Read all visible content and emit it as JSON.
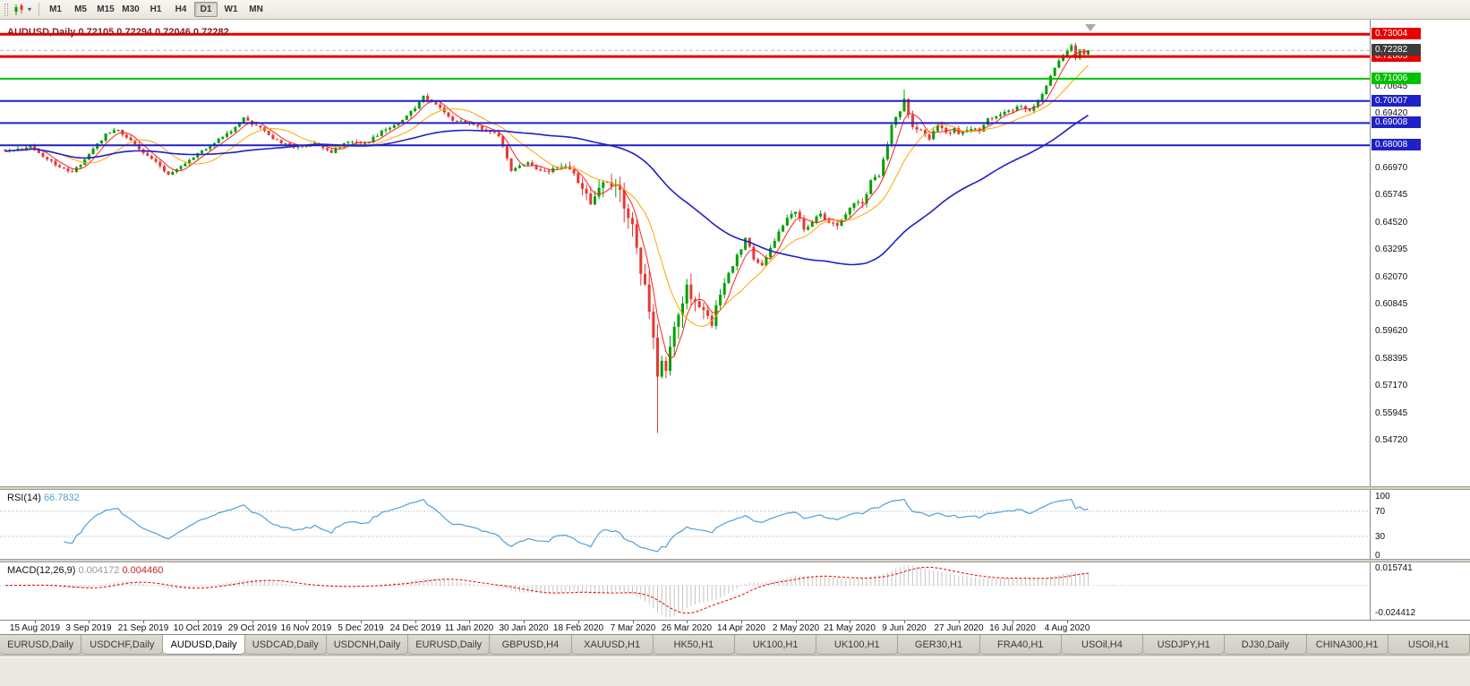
{
  "toolbar": {
    "timeframes": [
      {
        "label": "M1",
        "active": false
      },
      {
        "label": "M5",
        "active": false
      },
      {
        "label": "M15",
        "active": false
      },
      {
        "label": "M30",
        "active": false
      },
      {
        "label": "H1",
        "active": false
      },
      {
        "label": "H4",
        "active": false
      },
      {
        "label": "D1",
        "active": true
      },
      {
        "label": "W1",
        "active": false
      },
      {
        "label": "MN",
        "active": false
      }
    ]
  },
  "chart": {
    "title_symbol": "AUDUSD,Daily",
    "title_ohlc": "0.72105 0.72294 0.72046 0.72282",
    "colors": {
      "background": "#FFFFFF",
      "candle_up": "#00A000",
      "candle_down": "#E53935",
      "ma_fast": "#FF2020",
      "ma_mid": "#FFA500",
      "ma_slow": "#2020C8",
      "bid_line": "#B8B8B8"
    },
    "hlines": [
      {
        "price": 0.73004,
        "label": "0.73004",
        "color": "#E60000",
        "width": 3
      },
      {
        "price": 0.72005,
        "label": "0.72005",
        "color": "#E60000",
        "width": 3
      },
      {
        "price": 0.71006,
        "label": "0.71006",
        "color": "#00C000",
        "width": 2
      },
      {
        "price": 0.70007,
        "label": "0.70007",
        "color": "#2020C8",
        "width": 2
      },
      {
        "price": 0.69008,
        "label": "0.69008",
        "color": "#2020C8",
        "width": 2
      },
      {
        "price": 0.68008,
        "label": "0.68008",
        "color": "#2020C8",
        "width": 2
      }
    ],
    "current_price_tag": {
      "price": 0.72282,
      "label": "0.72282",
      "color": "#3C3C3C"
    },
    "axis_ticks": [
      {
        "price": 0.70645,
        "label": "0.70645"
      },
      {
        "price": 0.6942,
        "label": "0.69420"
      },
      {
        "price": 0.6697,
        "label": "0.66970"
      },
      {
        "price": 0.65745,
        "label": "0.65745"
      },
      {
        "price": 0.6452,
        "label": "0.64520"
      },
      {
        "price": 0.63295,
        "label": "0.63295"
      },
      {
        "price": 0.6207,
        "label": "0.62070"
      },
      {
        "price": 0.60845,
        "label": "0.60845"
      },
      {
        "price": 0.5962,
        "label": "0.59620"
      },
      {
        "price": 0.58395,
        "label": "0.58395"
      },
      {
        "price": 0.5717,
        "label": "0.57170"
      },
      {
        "price": 0.55945,
        "label": "0.55945"
      },
      {
        "price": 0.5472,
        "label": "0.54720"
      }
    ]
  },
  "chart_data": {
    "type": "candlestick",
    "symbol": "AUDUSD",
    "period": "Daily",
    "open": "0.72105",
    "high": "0.72294",
    "low": "0.72046",
    "close": "0.72282",
    "num_candles": 260,
    "crash_index": 156,
    "crash_low": 0.5506,
    "last_candle": {
      "open": 0.72105,
      "high": 0.72294,
      "low": 0.72046,
      "close": 0.72282
    },
    "price_anchors": [
      [
        0,
        0.6775
      ],
      [
        6,
        0.679
      ],
      [
        10,
        0.674
      ],
      [
        14,
        0.669
      ],
      [
        16,
        0.6675
      ],
      [
        20,
        0.676
      ],
      [
        24,
        0.685
      ],
      [
        27,
        0.687
      ],
      [
        31,
        0.68
      ],
      [
        35,
        0.6745
      ],
      [
        39,
        0.6672
      ],
      [
        43,
        0.672
      ],
      [
        48,
        0.679
      ],
      [
        53,
        0.685
      ],
      [
        57,
        0.692
      ],
      [
        60,
        0.689
      ],
      [
        65,
        0.682
      ],
      [
        70,
        0.679
      ],
      [
        74,
        0.681
      ],
      [
        78,
        0.6772
      ],
      [
        82,
        0.682
      ],
      [
        86,
        0.6805
      ],
      [
        90,
        0.686
      ],
      [
        94,
        0.6905
      ],
      [
        97,
        0.695
      ],
      [
        100,
        0.7018
      ],
      [
        103,
        0.699
      ],
      [
        107,
        0.6905
      ],
      [
        111,
        0.6905
      ],
      [
        115,
        0.687
      ],
      [
        118,
        0.684
      ],
      [
        121,
        0.669
      ],
      [
        125,
        0.672
      ],
      [
        129,
        0.668
      ],
      [
        133,
        0.6715
      ],
      [
        136,
        0.667
      ],
      [
        138,
        0.661
      ],
      [
        140,
        0.654
      ],
      [
        143,
        0.663
      ],
      [
        146,
        0.659
      ],
      [
        148,
        0.654
      ],
      [
        150,
        0.644
      ],
      [
        152,
        0.624
      ],
      [
        154,
        0.604
      ],
      [
        155,
        0.592
      ],
      [
        156,
        0.576
      ],
      [
        158,
        0.583
      ],
      [
        160,
        0.596
      ],
      [
        162,
        0.609
      ],
      [
        163,
        0.616
      ],
      [
        165,
        0.61
      ],
      [
        167,
        0.604
      ],
      [
        169,
        0.599
      ],
      [
        171,
        0.614
      ],
      [
        173,
        0.623
      ],
      [
        175,
        0.63
      ],
      [
        177,
        0.638
      ],
      [
        179,
        0.629
      ],
      [
        181,
        0.6265
      ],
      [
        183,
        0.633
      ],
      [
        185,
        0.641
      ],
      [
        187,
        0.6475
      ],
      [
        189,
        0.651
      ],
      [
        191,
        0.6425
      ],
      [
        193,
        0.6455
      ],
      [
        195,
        0.649
      ],
      [
        197,
        0.645
      ],
      [
        199,
        0.6435
      ],
      [
        201,
        0.6485
      ],
      [
        203,
        0.655
      ],
      [
        205,
        0.6535
      ],
      [
        207,
        0.664
      ],
      [
        209,
        0.6665
      ],
      [
        211,
        0.68
      ],
      [
        212,
        0.69
      ],
      [
        214,
        0.6965
      ],
      [
        215,
        0.7
      ],
      [
        217,
        0.688
      ],
      [
        219,
        0.687
      ],
      [
        221,
        0.683
      ],
      [
        223,
        0.69
      ],
      [
        225,
        0.686
      ],
      [
        227,
        0.687
      ],
      [
        229,
        0.685
      ],
      [
        231,
        0.688
      ],
      [
        233,
        0.686
      ],
      [
        235,
        0.692
      ],
      [
        237,
        0.694
      ],
      [
        239,
        0.695
      ],
      [
        241,
        0.696
      ],
      [
        243,
        0.698
      ],
      [
        245,
        0.695
      ],
      [
        247,
        0.7
      ],
      [
        249,
        0.707
      ],
      [
        251,
        0.715
      ],
      [
        253,
        0.721
      ],
      [
        255,
        0.725
      ],
      [
        256,
        0.72
      ],
      [
        257,
        0.723
      ],
      [
        258,
        0.7211
      ],
      [
        259,
        0.72282
      ]
    ],
    "date_labels": [
      "15 Aug 2019",
      "3 Sep 2019",
      "21 Sep 2019",
      "10 Oct 2019",
      "29 Oct 2019",
      "16 Nov 2019",
      "5 Dec 2019",
      "24 Dec 2019",
      "11 Jan 2020",
      "30 Jan 2020",
      "18 Feb 2020",
      "7 Mar 2020",
      "26 Mar 2020",
      "14 Apr 2020",
      "2 May 2020",
      "21 May 2020",
      "9 Jun 2020",
      "27 Jun 2020",
      "16 Jul 2020",
      "4 Aug 2020"
    ]
  },
  "indicators": {
    "rsi": {
      "name": "RSI(14)",
      "value": "66.7832",
      "line_color": "#4FA0D8",
      "levels": [
        {
          "label": "100",
          "value": 100,
          "dotted": false
        },
        {
          "label": "70",
          "value": 70,
          "dotted": true
        },
        {
          "label": "30",
          "value": 30,
          "dotted": true
        },
        {
          "label": "0",
          "value": 0,
          "dotted": false
        }
      ]
    },
    "macd": {
      "name": "MACD(12,26,9)",
      "value_main": "0.004172",
      "value_signal": "0.004460",
      "hist_color": "#C4C4C4",
      "signal_color": "#E60000",
      "scale_top": "0.015741",
      "scale_bottom": "-0.024412"
    }
  },
  "tabs": [
    {
      "label": "EURUSD,Daily",
      "active": false
    },
    {
      "label": "USDCHF,Daily",
      "active": false
    },
    {
      "label": "AUDUSD,Daily",
      "active": true
    },
    {
      "label": "USDCAD,Daily",
      "active": false
    },
    {
      "label": "USDCNH,Daily",
      "active": false
    },
    {
      "label": "EURUSD,Daily",
      "active": false
    },
    {
      "label": "GBPUSD,H4",
      "active": false
    },
    {
      "label": "XAUUSD,H1",
      "active": false
    },
    {
      "label": "HK50,H1",
      "active": false
    },
    {
      "label": "UK100,H1",
      "active": false
    },
    {
      "label": "UK100,H1",
      "active": false
    },
    {
      "label": "GER30,H1",
      "active": false
    },
    {
      "label": "FRA40,H1",
      "active": false
    },
    {
      "label": "USOil,H4",
      "active": false
    },
    {
      "label": "USDJPY,H1",
      "active": false
    },
    {
      "label": "DJ30,Daily",
      "active": false
    },
    {
      "label": "CHINA300,H1",
      "active": false
    },
    {
      "label": "USOil,H1",
      "active": false
    }
  ]
}
